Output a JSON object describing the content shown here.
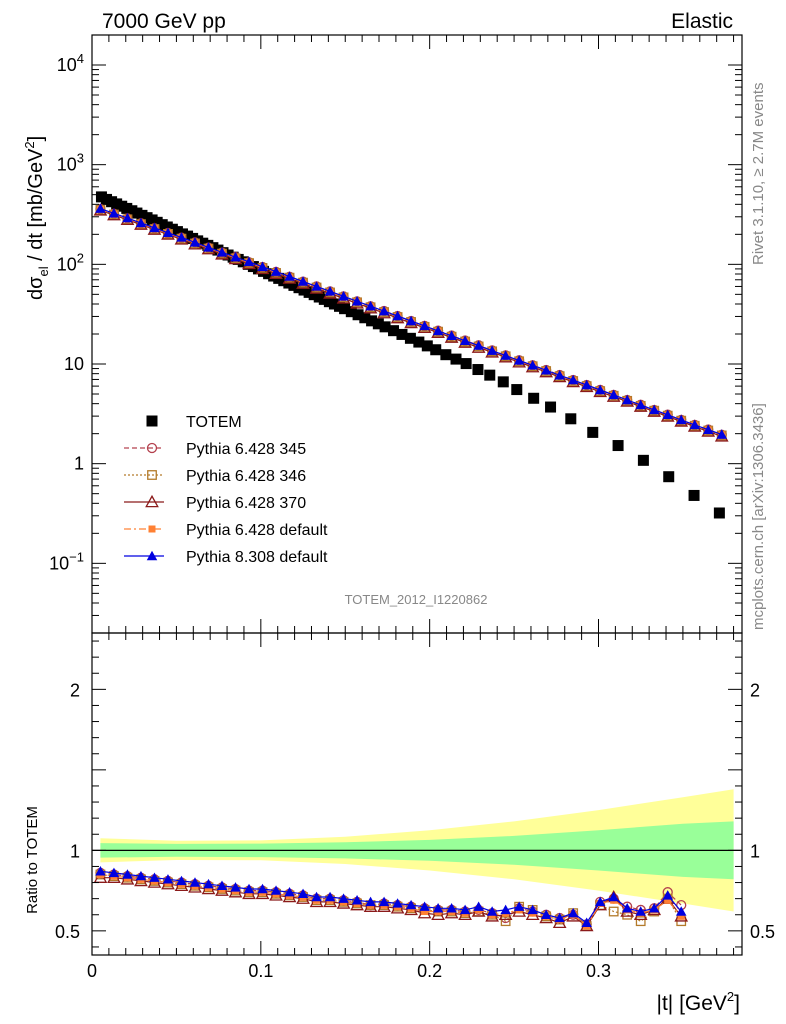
{
  "header": {
    "left": "7000 GeV pp",
    "right": "Elastic"
  },
  "side": {
    "rivet": "Rivet 3.1.10, ≥ 2.7M events",
    "mcplots": "mcplots.cern.ch [arXiv:1306.3436]"
  },
  "analysis_id": "TOTEM_2012_I1220862",
  "colors": {
    "totem": "#000000",
    "p345": "#b3404d",
    "p346": "#b37a2a",
    "p370": "#8b1a1a",
    "p6def": "#ff8033",
    "p8def": "#0000e0",
    "band_inner": "#99ff99",
    "band_outer": "#ffff99"
  },
  "chart_data": [
    {
      "type": "scatter",
      "panel": "main",
      "ylabel_parts": [
        "dσ",
        "el",
        " / dt [mb/GeV",
        "2",
        "]"
      ],
      "yscale": "log",
      "ylim": [
        0.02,
        20000
      ],
      "xlim": [
        0,
        0.385
      ],
      "y_ticks": [
        {
          "v": 0.1,
          "base": "10",
          "exp": "−1"
        },
        {
          "v": 1,
          "label": "1"
        },
        {
          "v": 10,
          "label": "10"
        },
        {
          "v": 100,
          "base": "10",
          "exp": "2"
        },
        {
          "v": 1000,
          "base": "10",
          "exp": "3"
        },
        {
          "v": 10000,
          "base": "10",
          "exp": "4"
        }
      ],
      "legend_position": "lower-left",
      "series": [
        {
          "name": "TOTEM",
          "key": "totem",
          "x": [
            0.0056,
            0.0086,
            0.0116,
            0.0146,
            0.0176,
            0.0206,
            0.0236,
            0.0266,
            0.0296,
            0.0326,
            0.0356,
            0.0386,
            0.0416,
            0.0446,
            0.0476,
            0.0506,
            0.0536,
            0.0566,
            0.0596,
            0.0626,
            0.0656,
            0.0686,
            0.0716,
            0.0746,
            0.0776,
            0.0806,
            0.0836,
            0.0866,
            0.0896,
            0.0926,
            0.0956,
            0.0986,
            0.1016,
            0.1046,
            0.1076,
            0.1106,
            0.1136,
            0.1166,
            0.1196,
            0.1226,
            0.1256,
            0.1286,
            0.1316,
            0.1346,
            0.1376,
            0.1406,
            0.1436,
            0.1466,
            0.1496,
            0.1536,
            0.1576,
            0.1616,
            0.1656,
            0.1696,
            0.1736,
            0.1786,
            0.1836,
            0.1886,
            0.1936,
            0.1986,
            0.2036,
            0.2096,
            0.2156,
            0.2216,
            0.2286,
            0.2356,
            0.2436,
            0.2516,
            0.2616,
            0.2716,
            0.2836,
            0.2966,
            0.3116,
            0.3266,
            0.3416,
            0.3566,
            0.3716
          ],
          "y": [
            475,
            448,
            425,
            404,
            383,
            364,
            345,
            327,
            310,
            294,
            279,
            264,
            250,
            237,
            225,
            213,
            202,
            192,
            182,
            172,
            163,
            155,
            147,
            139,
            131,
            124,
            118,
            112,
            106,
            100,
            95,
            90,
            85,
            80.5,
            76.3,
            72.3,
            68.5,
            64.9,
            61.5,
            58.3,
            55.2,
            52.3,
            49.6,
            47,
            44.5,
            42.2,
            40,
            37.9,
            35.9,
            33.5,
            31.2,
            29.1,
            27.1,
            25.3,
            23.6,
            21.6,
            19.8,
            18.1,
            16.6,
            15.2,
            13.9,
            12.4,
            11.2,
            10.1,
            8.8,
            7.73,
            6.62,
            5.54,
            4.53,
            3.7,
            2.82,
            2.06,
            1.52,
            1.08,
            0.74,
            0.48,
            0.32
          ]
        },
        {
          "name": "Pythia 6.428 345",
          "key": "p345",
          "x": [
            0.005,
            0.013,
            0.021,
            0.029,
            0.037,
            0.045,
            0.053,
            0.061,
            0.069,
            0.077,
            0.085,
            0.093,
            0.101,
            0.109,
            0.117,
            0.125,
            0.133,
            0.141,
            0.149,
            0.157,
            0.165,
            0.173,
            0.181,
            0.189,
            0.197,
            0.205,
            0.213,
            0.221,
            0.229,
            0.237,
            0.245,
            0.253,
            0.261,
            0.269,
            0.277,
            0.285,
            0.293,
            0.301,
            0.309,
            0.317,
            0.325,
            0.333,
            0.341,
            0.349,
            0.357,
            0.365,
            0.373
          ],
          "y": [
            359,
            322,
            289,
            258,
            230,
            206,
            185,
            166,
            147,
            131,
            118,
            105,
            94,
            84,
            75,
            67,
            60,
            53.5,
            47.7,
            42.5,
            38,
            34,
            30.3,
            27,
            24.1,
            21.6,
            19.3,
            17.2,
            15.4,
            13.7,
            12.2,
            10.9,
            9.7,
            8.7,
            7.75,
            6.9,
            6.15,
            5.5,
            4.9,
            4.35,
            3.9,
            3.45,
            3.1,
            2.75,
            2.45,
            2.2,
            1.95
          ]
        },
        {
          "name": "Pythia 6.428 346",
          "key": "p346",
          "x": [
            0.005,
            0.013,
            0.021,
            0.029,
            0.037,
            0.045,
            0.053,
            0.061,
            0.069,
            0.077,
            0.085,
            0.093,
            0.101,
            0.109,
            0.117,
            0.125,
            0.133,
            0.141,
            0.149,
            0.157,
            0.165,
            0.173,
            0.181,
            0.189,
            0.197,
            0.205,
            0.213,
            0.221,
            0.229,
            0.237,
            0.245,
            0.253,
            0.261,
            0.269,
            0.277,
            0.285,
            0.293,
            0.301,
            0.309,
            0.317,
            0.325,
            0.333,
            0.341,
            0.349,
            0.357,
            0.365,
            0.373
          ],
          "y": [
            352,
            316,
            283,
            253,
            226,
            202,
            181,
            162,
            144,
            128,
            115,
            103,
            92,
            82,
            73.5,
            65.5,
            58.5,
            52.2,
            46.6,
            41.6,
            37.1,
            33.2,
            29.6,
            26.4,
            23.6,
            21.1,
            18.8,
            16.8,
            15,
            13.4,
            11.95,
            10.65,
            9.5,
            8.5,
            7.55,
            6.75,
            6,
            5.35,
            4.8,
            4.27,
            3.8,
            3.4,
            3.03,
            2.7,
            2.4,
            2.15,
            1.92
          ]
        },
        {
          "name": "Pythia 6.428 370",
          "key": "p370",
          "x": [
            0.005,
            0.013,
            0.021,
            0.029,
            0.037,
            0.045,
            0.053,
            0.061,
            0.069,
            0.077,
            0.085,
            0.093,
            0.101,
            0.109,
            0.117,
            0.125,
            0.133,
            0.141,
            0.149,
            0.157,
            0.165,
            0.173,
            0.181,
            0.189,
            0.197,
            0.205,
            0.213,
            0.221,
            0.229,
            0.237,
            0.245,
            0.253,
            0.261,
            0.269,
            0.277,
            0.285,
            0.293,
            0.301,
            0.309,
            0.317,
            0.325,
            0.333,
            0.341,
            0.349,
            0.357,
            0.365,
            0.373
          ],
          "y": [
            348,
            312,
            280,
            250,
            223,
            199,
            178,
            159,
            142,
            126,
            113,
            101,
            90,
            80.5,
            72,
            64,
            57.2,
            51,
            45.5,
            40.6,
            36.3,
            32.4,
            28.9,
            25.8,
            23.1,
            20.6,
            18.4,
            16.4,
            14.6,
            13.1,
            11.7,
            10.4,
            9.3,
            8.3,
            7.4,
            6.6,
            5.9,
            5.25,
            4.7,
            4.2,
            3.74,
            3.33,
            2.97,
            2.65,
            2.36,
            2.1,
            1.88
          ]
        },
        {
          "name": "Pythia 6.428 default",
          "key": "p6def",
          "x": [
            0.005,
            0.013,
            0.021,
            0.029,
            0.037,
            0.045,
            0.053,
            0.061,
            0.069,
            0.077,
            0.085,
            0.093,
            0.101,
            0.109,
            0.117,
            0.125,
            0.133,
            0.141,
            0.149,
            0.157,
            0.165,
            0.173,
            0.181,
            0.189,
            0.197,
            0.205,
            0.213,
            0.221,
            0.229,
            0.237,
            0.245,
            0.253,
            0.261,
            0.269,
            0.277,
            0.285,
            0.293,
            0.301,
            0.309,
            0.317,
            0.325,
            0.333,
            0.341,
            0.349,
            0.357,
            0.365,
            0.373
          ],
          "y": [
            355,
            319,
            286,
            256,
            228,
            204,
            183,
            164,
            146,
            130,
            116,
            104,
            93,
            83,
            74,
            66,
            59,
            52.8,
            47.1,
            42,
            37.5,
            33.5,
            29.9,
            26.7,
            23.8,
            21.3,
            19,
            17,
            15.2,
            13.5,
            12.05,
            10.75,
            9.6,
            8.6,
            7.65,
            6.82,
            6.08,
            5.42,
            4.85,
            4.3,
            3.85,
            3.42,
            3.06,
            2.72,
            2.43,
            2.17,
            1.94
          ]
        },
        {
          "name": "Pythia 8.308 default",
          "key": "p8def",
          "x": [
            0.005,
            0.013,
            0.021,
            0.029,
            0.037,
            0.045,
            0.053,
            0.061,
            0.069,
            0.077,
            0.085,
            0.093,
            0.101,
            0.109,
            0.117,
            0.125,
            0.133,
            0.141,
            0.149,
            0.157,
            0.165,
            0.173,
            0.181,
            0.189,
            0.197,
            0.205,
            0.213,
            0.221,
            0.229,
            0.237,
            0.245,
            0.253,
            0.261,
            0.269,
            0.277,
            0.285,
            0.293,
            0.301,
            0.309,
            0.317,
            0.325,
            0.333,
            0.341,
            0.349,
            0.357,
            0.365,
            0.373
          ],
          "y": [
            362,
            325,
            291,
            260,
            232,
            207,
            186,
            166,
            148,
            132,
            118,
            106,
            94.5,
            84.5,
            75.5,
            67.2,
            60,
            53.6,
            47.8,
            42.6,
            38,
            33.9,
            30.3,
            27,
            24.1,
            21.5,
            19.2,
            17.1,
            15.3,
            13.6,
            12.15,
            10.85,
            9.7,
            8.65,
            7.7,
            6.9,
            6.15,
            5.48,
            4.9,
            4.35,
            3.88,
            3.46,
            3.09,
            2.75,
            2.45,
            2.19,
            1.96
          ]
        }
      ]
    },
    {
      "type": "line",
      "panel": "ratio",
      "ylabel": "Ratio to TOTEM",
      "ylim": [
        0.35,
        2.35
      ],
      "xlim": [
        0,
        0.385
      ],
      "x_ticks": [
        {
          "v": 0,
          "label": "0"
        },
        {
          "v": 0.1,
          "label": "0.1"
        },
        {
          "v": 0.2,
          "label": "0.2"
        },
        {
          "v": 0.3,
          "label": "0.3"
        }
      ],
      "y_ticks": [
        {
          "v": 0.5,
          "label": "0.5"
        },
        {
          "v": 1,
          "label": "1"
        },
        {
          "v": 2,
          "label": "2"
        }
      ],
      "xlabel_parts": [
        "|t| [GeV",
        "2",
        "]"
      ],
      "band": {
        "x": [
          0.005,
          0.05,
          0.1,
          0.15,
          0.2,
          0.25,
          0.3,
          0.35,
          0.38
        ],
        "inner_half": [
          0.045,
          0.04,
          0.042,
          0.05,
          0.065,
          0.09,
          0.125,
          0.165,
          0.18
        ],
        "outer_half": [
          0.075,
          0.06,
          0.062,
          0.085,
          0.125,
          0.18,
          0.25,
          0.33,
          0.38
        ]
      },
      "series": [
        {
          "name": "Pythia 6.428 345",
          "key": "p345",
          "y": [
            0.86,
            0.85,
            0.84,
            0.83,
            0.82,
            0.81,
            0.8,
            0.79,
            0.78,
            0.77,
            0.76,
            0.75,
            0.75,
            0.74,
            0.73,
            0.72,
            0.7,
            0.7,
            0.69,
            0.68,
            0.66,
            0.67,
            0.66,
            0.65,
            0.64,
            0.63,
            0.63,
            0.62,
            0.63,
            0.61,
            0.58,
            0.64,
            0.62,
            0.6,
            0.58,
            0.6,
            0.54,
            0.68,
            0.7,
            0.65,
            0.63,
            0.64,
            0.74,
            0.66
          ]
        },
        {
          "name": "Pythia 6.428 346",
          "key": "p346",
          "y": [
            0.85,
            0.84,
            0.83,
            0.82,
            0.81,
            0.8,
            0.79,
            0.78,
            0.77,
            0.76,
            0.75,
            0.74,
            0.74,
            0.73,
            0.72,
            0.71,
            0.69,
            0.69,
            0.68,
            0.67,
            0.66,
            0.66,
            0.65,
            0.64,
            0.63,
            0.62,
            0.62,
            0.61,
            0.62,
            0.6,
            0.56,
            0.65,
            0.63,
            0.59,
            0.57,
            0.61,
            0.53,
            0.66,
            0.62,
            0.6,
            0.56,
            0.62,
            0.7,
            0.56
          ]
        },
        {
          "name": "Pythia 6.428 370",
          "key": "p370",
          "y": [
            0.83,
            0.83,
            0.82,
            0.81,
            0.8,
            0.79,
            0.78,
            0.77,
            0.76,
            0.75,
            0.74,
            0.73,
            0.73,
            0.72,
            0.71,
            0.7,
            0.68,
            0.68,
            0.67,
            0.66,
            0.65,
            0.65,
            0.64,
            0.63,
            0.61,
            0.6,
            0.61,
            0.6,
            0.62,
            0.59,
            0.6,
            0.62,
            0.6,
            0.58,
            0.55,
            0.59,
            0.53,
            0.66,
            0.71,
            0.62,
            0.6,
            0.63,
            0.7,
            0.59
          ]
        },
        {
          "name": "Pythia 6.428 default",
          "key": "p6def",
          "y": [
            0.85,
            0.84,
            0.83,
            0.82,
            0.81,
            0.8,
            0.79,
            0.78,
            0.77,
            0.76,
            0.75,
            0.74,
            0.74,
            0.73,
            0.72,
            0.71,
            0.69,
            0.69,
            0.68,
            0.67,
            0.66,
            0.66,
            0.65,
            0.64,
            0.62,
            0.62,
            0.62,
            0.61,
            0.63,
            0.6,
            0.61,
            0.63,
            0.61,
            0.59,
            0.57,
            0.6,
            0.53,
            0.67,
            0.69,
            0.63,
            0.61,
            0.63,
            0.69,
            0.59
          ]
        },
        {
          "name": "Pythia 8.308 default",
          "key": "p8def",
          "y": [
            0.87,
            0.86,
            0.85,
            0.84,
            0.83,
            0.82,
            0.81,
            0.8,
            0.79,
            0.78,
            0.77,
            0.76,
            0.76,
            0.75,
            0.74,
            0.73,
            0.71,
            0.71,
            0.7,
            0.69,
            0.68,
            0.68,
            0.67,
            0.66,
            0.65,
            0.64,
            0.64,
            0.63,
            0.65,
            0.62,
            0.63,
            0.65,
            0.63,
            0.6,
            0.58,
            0.61,
            0.55,
            0.68,
            0.71,
            0.64,
            0.62,
            0.64,
            0.72,
            0.62
          ]
        }
      ]
    }
  ]
}
